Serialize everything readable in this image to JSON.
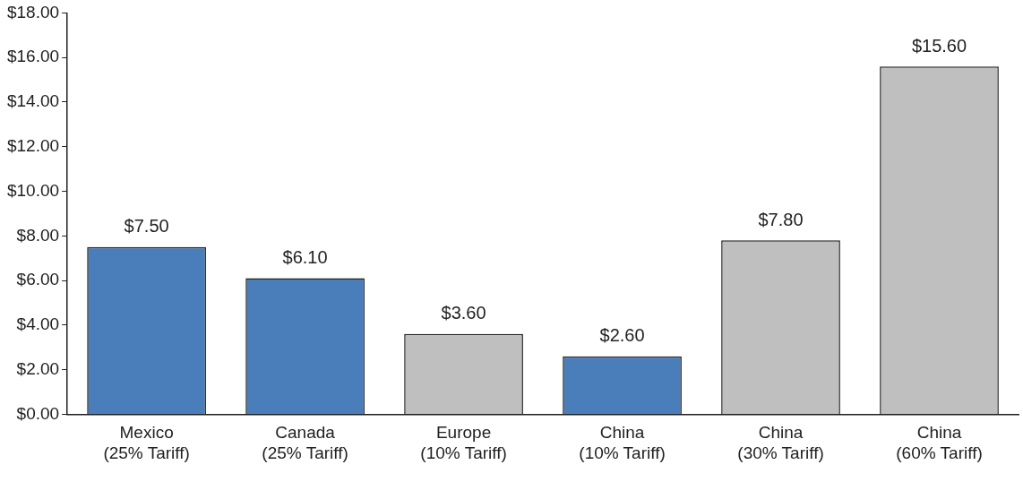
{
  "chart_data": {
    "type": "bar",
    "categories": [
      "Mexico\n(25% Tariff)",
      "Canada\n(25% Tariff)",
      "Europe\n(10% Tariff)",
      "China\n(10% Tariff)",
      "China\n(30% Tariff)",
      "China\n(60% Tariff)"
    ],
    "values": [
      7.5,
      6.1,
      3.6,
      2.6,
      7.8,
      15.6
    ],
    "colors": [
      "#4a7ebb",
      "#4a7ebb",
      "#bfbfbf",
      "#4a7ebb",
      "#bfbfbf",
      "#bfbfbf"
    ],
    "value_labels": [
      "$7.50",
      "$6.10",
      "$3.60",
      "$2.60",
      "$7.80",
      "$15.60"
    ],
    "ylim": [
      0,
      18
    ],
    "yticks": [
      {
        "value": 0,
        "label": "$0.00"
      },
      {
        "value": 2,
        "label": "$2.00"
      },
      {
        "value": 4,
        "label": "$4.00"
      },
      {
        "value": 6,
        "label": "$6.00"
      },
      {
        "value": 8,
        "label": "$8.00"
      },
      {
        "value": 10,
        "label": "$10.00"
      },
      {
        "value": 12,
        "label": "$12.00"
      },
      {
        "value": 14,
        "label": "$14.00"
      },
      {
        "value": 16,
        "label": "$16.00"
      },
      {
        "value": 18,
        "label": "$18.00"
      }
    ],
    "grid": false,
    "legend": false
  }
}
